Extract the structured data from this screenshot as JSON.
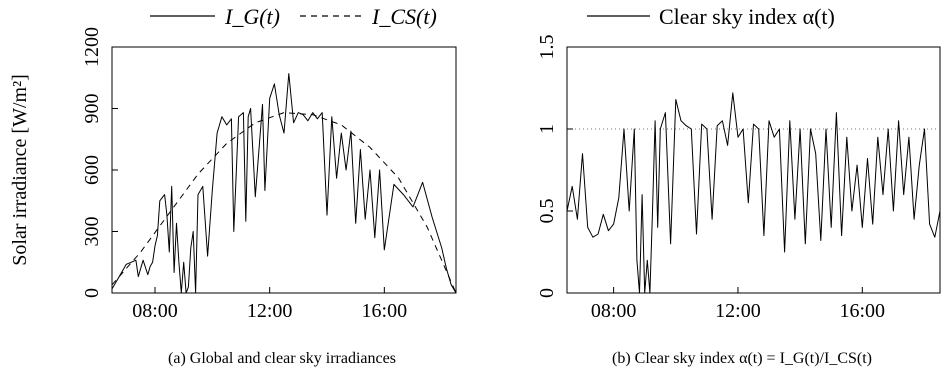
{
  "chart_data": [
    {
      "type": "line",
      "caption": "(a) Global and clear sky irradiances",
      "ylabel": "Solar irradiance [W/m²]",
      "xlabel": "",
      "x_ticks": [
        "08:00",
        "12:00",
        "16:00"
      ],
      "y_ticks": [
        "0",
        "300",
        "600",
        "900",
        "1200"
      ],
      "xlim": [
        "06:30",
        "18:30"
      ],
      "ylim": [
        0,
        1200
      ],
      "legend_position": "top",
      "series": [
        {
          "name": "I_G(t)",
          "style": "solid",
          "x": [
            "06:30",
            "06:45",
            "07:00",
            "07:10",
            "07:20",
            "07:25",
            "07:35",
            "07:45",
            "07:50",
            "07:55",
            "08:00",
            "08:05",
            "08:10",
            "08:20",
            "08:25",
            "08:30",
            "08:35",
            "08:40",
            "08:45",
            "08:50",
            "08:55",
            "09:00",
            "09:05",
            "09:10",
            "09:15",
            "09:20",
            "09:25",
            "09:30",
            "09:40",
            "09:50",
            "10:00",
            "10:10",
            "10:20",
            "10:30",
            "10:40",
            "10:45",
            "10:55",
            "11:05",
            "11:10",
            "11:15",
            "11:20",
            "11:30",
            "11:45",
            "11:50",
            "12:00",
            "12:10",
            "12:20",
            "12:30",
            "12:40",
            "12:50",
            "13:00",
            "13:10",
            "13:20",
            "13:30",
            "13:40",
            "13:50",
            "14:00",
            "14:10",
            "14:20",
            "14:30",
            "14:40",
            "14:50",
            "15:00",
            "15:10",
            "15:20",
            "15:30",
            "15:40",
            "15:50",
            "16:00",
            "16:20",
            "16:40",
            "17:00",
            "17:20",
            "17:40",
            "18:00",
            "18:10",
            "18:20",
            "18:30"
          ],
          "y": [
            20,
            80,
            140,
            150,
            160,
            80,
            160,
            90,
            130,
            150,
            230,
            280,
            450,
            480,
            380,
            200,
            520,
            100,
            340,
            150,
            0,
            150,
            0,
            30,
            220,
            300,
            0,
            480,
            520,
            180,
            500,
            780,
            860,
            820,
            850,
            300,
            860,
            880,
            350,
            860,
            900,
            470,
            920,
            500,
            950,
            1020,
            870,
            780,
            1070,
            830,
            880,
            870,
            840,
            880,
            850,
            880,
            380,
            860,
            560,
            780,
            600,
            790,
            340,
            700,
            360,
            600,
            270,
            600,
            210,
            530,
            480,
            420,
            540,
            370,
            220,
            120,
            40,
            0
          ]
        },
        {
          "name": "I_CS(t)",
          "style": "dashed",
          "x": [
            "06:30",
            "07:30",
            "08:30",
            "09:30",
            "10:30",
            "11:30",
            "12:30",
            "13:30",
            "14:30",
            "15:30",
            "16:30",
            "17:30",
            "18:30"
          ],
          "y": [
            40,
            200,
            390,
            580,
            730,
            830,
            880,
            870,
            820,
            710,
            560,
            320,
            0
          ]
        }
      ]
    },
    {
      "type": "line",
      "caption": "(b) Clear sky index α(t) = I_G(t)/I_CS(t)",
      "ylabel": "",
      "xlabel": "",
      "x_ticks": [
        "08:00",
        "12:00",
        "16:00"
      ],
      "y_ticks": [
        "0",
        "0.5",
        "1",
        "1.5"
      ],
      "xlim": [
        "06:30",
        "18:30"
      ],
      "ylim": [
        0,
        1.5
      ],
      "legend_position": "top",
      "reference_line": 1,
      "series": [
        {
          "name": "Clear sky index α(t)",
          "style": "solid",
          "x": [
            "06:30",
            "06:40",
            "06:50",
            "07:00",
            "07:10",
            "07:20",
            "07:30",
            "07:40",
            "07:50",
            "08:00",
            "08:10",
            "08:20",
            "08:30",
            "08:40",
            "08:45",
            "08:50",
            "08:55",
            "09:00",
            "09:05",
            "09:10",
            "09:15",
            "09:20",
            "09:25",
            "09:30",
            "09:40",
            "09:50",
            "10:00",
            "10:10",
            "10:20",
            "10:30",
            "10:40",
            "10:50",
            "11:00",
            "11:10",
            "11:20",
            "11:30",
            "11:40",
            "11:50",
            "12:00",
            "12:10",
            "12:20",
            "12:30",
            "12:40",
            "12:50",
            "13:00",
            "13:10",
            "13:20",
            "13:30",
            "13:40",
            "13:50",
            "14:00",
            "14:10",
            "14:20",
            "14:30",
            "14:40",
            "14:50",
            "15:00",
            "15:10",
            "15:20",
            "15:30",
            "15:40",
            "15:50",
            "16:00",
            "16:10",
            "16:20",
            "16:30",
            "16:40",
            "16:50",
            "17:00",
            "17:10",
            "17:20",
            "17:30",
            "17:40",
            "17:50",
            "18:00",
            "18:10",
            "18:20",
            "18:30"
          ],
          "y": [
            0.5,
            0.65,
            0.45,
            0.85,
            0.4,
            0.34,
            0.36,
            0.48,
            0.38,
            0.42,
            0.58,
            1.0,
            0.5,
            1.0,
            0.2,
            0.0,
            0.6,
            0.0,
            0.2,
            0.0,
            0.5,
            1.05,
            0.4,
            1.0,
            1.1,
            0.3,
            1.18,
            1.05,
            1.02,
            1.0,
            0.36,
            1.03,
            1.0,
            0.45,
            1.02,
            1.05,
            0.9,
            1.22,
            0.95,
            1.0,
            0.55,
            1.03,
            1.0,
            0.35,
            1.05,
            0.95,
            1.0,
            0.25,
            1.05,
            0.45,
            1.0,
            0.3,
            1.0,
            0.85,
            0.32,
            1.0,
            0.4,
            1.1,
            0.35,
            0.95,
            0.5,
            0.78,
            0.4,
            0.82,
            0.42,
            0.95,
            0.6,
            1.0,
            0.5,
            1.05,
            0.6,
            0.95,
            0.45,
            0.78,
            1.0,
            0.42,
            0.34,
            0.5
          ]
        }
      ]
    }
  ]
}
